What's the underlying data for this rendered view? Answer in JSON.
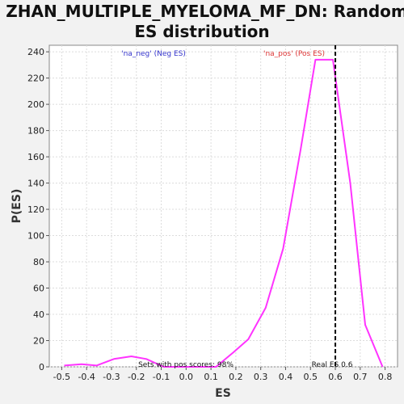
{
  "chart_data": {
    "type": "line",
    "title_line1": "ZHAN_MULTIPLE_MYELOMA_MF_DN: Random",
    "title_line2": "ES distribution",
    "xlabel": "ES",
    "ylabel": "P(ES)",
    "xlim": [
      -0.55,
      0.85
    ],
    "ylim": [
      0,
      245
    ],
    "xticks": [
      -0.5,
      -0.4,
      -0.3,
      -0.2,
      -0.1,
      0.0,
      0.1,
      0.2,
      0.3,
      0.4,
      0.5,
      0.6,
      0.7,
      0.8
    ],
    "xtick_labels": [
      "-0.5",
      "-0.4",
      "-0.3",
      "-0.2",
      "-0.1",
      "0.0",
      "0.1",
      "0.2",
      "0.3",
      "0.4",
      "0.5",
      "0.6",
      "0.7",
      "0.8"
    ],
    "yticks": [
      0,
      20,
      40,
      60,
      80,
      100,
      120,
      140,
      160,
      180,
      200,
      220,
      240
    ],
    "ytick_labels": [
      "0",
      "20",
      "40",
      "60",
      "80",
      "100",
      "120",
      "140",
      "160",
      "180",
      "200",
      "220",
      "240"
    ],
    "grid": true,
    "series": [
      {
        "color": "#ff33ff",
        "x": [
          -0.49,
          -0.42,
          -0.36,
          -0.29,
          -0.22,
          -0.16,
          -0.09,
          -0.03,
          0.04,
          0.12,
          0.19,
          0.25,
          0.32,
          0.39,
          0.46,
          0.52,
          0.59,
          0.66,
          0.72,
          0.79
        ],
        "y": [
          1,
          2,
          1,
          6,
          8,
          6,
          0,
          0,
          0,
          0,
          11,
          21,
          45,
          90,
          165,
          234,
          234,
          140,
          32,
          0
        ]
      }
    ],
    "real_es": 0.6,
    "real_es_color": "#000000",
    "annotations": {
      "neg_label": "'na_neg' (Neg ES)",
      "neg_color": "#3333cc",
      "pos_label": "'na_pos' (Pos ES)",
      "pos_color": "#dd3333",
      "sets_label": "Sets with pos scores: 98%",
      "real_es_label": "Real ES 0.6"
    }
  }
}
